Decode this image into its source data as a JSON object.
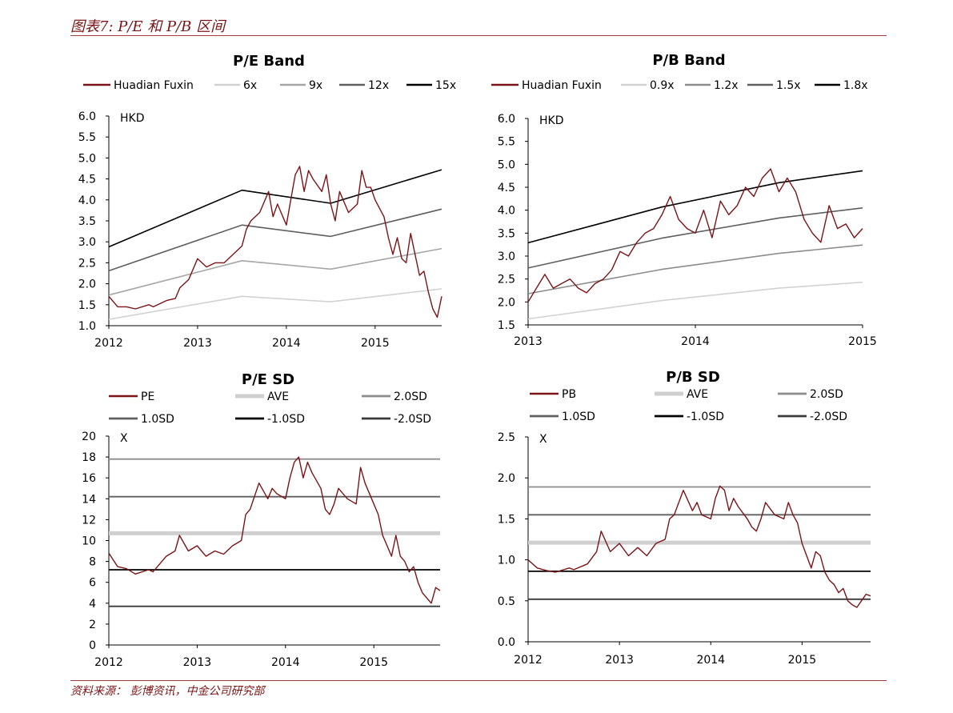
{
  "header": {
    "title": "图表7: P/E 和 P/B 区间"
  },
  "footer": {
    "source": "资料来源：   彭博资讯，中金公司研究部"
  },
  "colors": {
    "price": "#7b1416",
    "accent": "#a43a3a"
  },
  "chart_data": [
    {
      "type": "line",
      "title": "P/E Band",
      "unit_label": "HKD",
      "ylim": [
        1.0,
        6.0
      ],
      "yticks": [
        "1.0",
        "1.5",
        "2.0",
        "2.5",
        "3.0",
        "3.5",
        "4.0",
        "4.5",
        "5.0",
        "5.5",
        "6.0"
      ],
      "xlim": [
        2012.0,
        2015.75
      ],
      "xticks": [
        "2012",
        "2013",
        "2014",
        "2015"
      ],
      "legend": [
        "Huadian Fuxin",
        "6x",
        "9x",
        "12x",
        "15x"
      ],
      "series": [
        {
          "name": "Huadian Fuxin",
          "x": [
            2012.0,
            2012.1,
            2012.2,
            2012.3,
            2012.45,
            2012.5,
            2012.65,
            2012.75,
            2012.8,
            2012.9,
            2013.0,
            2013.1,
            2013.2,
            2013.3,
            2013.4,
            2013.5,
            2013.55,
            2013.6,
            2013.7,
            2013.8,
            2013.85,
            2013.9,
            2014.0,
            2014.05,
            2014.1,
            2014.15,
            2014.2,
            2014.25,
            2014.3,
            2014.4,
            2014.45,
            2014.5,
            2014.55,
            2014.6,
            2014.7,
            2014.8,
            2014.85,
            2014.9,
            2014.95,
            2015.0,
            2015.05,
            2015.1,
            2015.15,
            2015.2,
            2015.25,
            2015.3,
            2015.35,
            2015.4,
            2015.45,
            2015.5,
            2015.55,
            2015.6,
            2015.65,
            2015.7,
            2015.75
          ],
          "y": [
            1.7,
            1.45,
            1.45,
            1.4,
            1.5,
            1.45,
            1.6,
            1.65,
            1.9,
            2.1,
            2.6,
            2.4,
            2.5,
            2.5,
            2.7,
            2.9,
            3.3,
            3.5,
            3.7,
            4.2,
            3.6,
            3.9,
            3.4,
            4.0,
            4.6,
            4.8,
            4.2,
            4.7,
            4.5,
            4.2,
            4.6,
            3.9,
            3.5,
            4.2,
            3.7,
            3.9,
            4.7,
            4.3,
            4.3,
            4.0,
            3.8,
            3.6,
            3.1,
            2.7,
            3.1,
            2.6,
            2.5,
            3.2,
            2.7,
            2.2,
            2.3,
            1.8,
            1.4,
            1.2,
            1.7
          ]
        },
        {
          "name": "6x",
          "x": [
            2012.0,
            2013.5,
            2014.5,
            2015.75
          ],
          "y": [
            1.15,
            1.7,
            1.57,
            1.88
          ]
        },
        {
          "name": "9x",
          "x": [
            2012.0,
            2013.5,
            2014.5,
            2015.75
          ],
          "y": [
            1.73,
            2.55,
            2.35,
            2.84
          ]
        },
        {
          "name": "12x",
          "x": [
            2012.0,
            2013.5,
            2014.5,
            2015.75
          ],
          "y": [
            2.31,
            3.4,
            3.13,
            3.78
          ]
        },
        {
          "name": "15x",
          "x": [
            2012.0,
            2013.5,
            2014.5,
            2015.75
          ],
          "y": [
            2.88,
            4.23,
            3.92,
            4.72
          ]
        }
      ]
    },
    {
      "type": "line",
      "title": "P/B Band",
      "unit_label": "HKD",
      "ylim": [
        1.5,
        6.0
      ],
      "yticks": [
        "1.5",
        "2.0",
        "2.5",
        "3.0",
        "3.5",
        "4.0",
        "4.5",
        "5.0",
        "5.5",
        "6.0"
      ],
      "xlim": [
        2013.0,
        2015.0
      ],
      "xticks": [
        "2013",
        "2014",
        "2015"
      ],
      "legend": [
        "Huadian Fuxin",
        "0.9x",
        "1.2x",
        "1.5x",
        "1.8x"
      ],
      "series": [
        {
          "name": "Huadian Fuxin",
          "x": [
            2013.0,
            2013.05,
            2013.1,
            2013.15,
            2013.2,
            2013.25,
            2013.3,
            2013.35,
            2013.4,
            2013.45,
            2013.5,
            2013.55,
            2013.6,
            2013.65,
            2013.7,
            2013.75,
            2013.8,
            2013.85,
            2013.9,
            2013.95,
            2014.0,
            2014.05,
            2014.1,
            2014.15,
            2014.2,
            2014.25,
            2014.3,
            2014.35,
            2014.4,
            2014.45,
            2014.5,
            2014.55,
            2014.6,
            2014.65,
            2014.7,
            2014.75,
            2014.8,
            2014.85,
            2014.9,
            2014.95,
            2015.0
          ],
          "y": [
            2.0,
            2.3,
            2.6,
            2.3,
            2.4,
            2.5,
            2.3,
            2.2,
            2.4,
            2.5,
            2.7,
            3.1,
            3.0,
            3.3,
            3.5,
            3.6,
            3.9,
            4.3,
            3.8,
            3.6,
            3.5,
            4.0,
            3.4,
            4.2,
            3.9,
            4.1,
            4.5,
            4.3,
            4.7,
            4.9,
            4.4,
            4.7,
            4.4,
            3.8,
            3.5,
            3.3,
            4.1,
            3.6,
            3.7,
            3.4,
            3.6
          ]
        },
        {
          "name": "0.9x",
          "x": [
            2013.0,
            2013.8,
            2014.5,
            2015.0
          ],
          "y": [
            1.63,
            2.03,
            2.3,
            2.43
          ]
        },
        {
          "name": "1.2x",
          "x": [
            2013.0,
            2013.8,
            2014.5,
            2015.0
          ],
          "y": [
            2.18,
            2.71,
            3.06,
            3.24
          ]
        },
        {
          "name": "1.5x",
          "x": [
            2013.0,
            2013.8,
            2014.5,
            2015.0
          ],
          "y": [
            2.74,
            3.39,
            3.83,
            4.05
          ]
        },
        {
          "name": "1.8x",
          "x": [
            2013.0,
            2013.8,
            2014.5,
            2015.0
          ],
          "y": [
            3.29,
            4.07,
            4.6,
            4.86
          ]
        }
      ]
    },
    {
      "type": "line",
      "title": "P/E SD",
      "unit_label": "X",
      "ylim": [
        0,
        20
      ],
      "yticks": [
        "0",
        "2",
        "4",
        "6",
        "8",
        "10",
        "12",
        "14",
        "16",
        "18",
        "20"
      ],
      "xlim": [
        2012.0,
        2015.75
      ],
      "xticks": [
        "2012",
        "2013",
        "2014",
        "2015"
      ],
      "legend": [
        "PE",
        "AVE",
        "2.0SD",
        "1.0SD",
        "-1.0SD",
        "-2.0SD"
      ],
      "series": [
        {
          "name": "PE",
          "x": [
            2012.0,
            2012.1,
            2012.2,
            2012.3,
            2012.45,
            2012.5,
            2012.65,
            2012.75,
            2012.8,
            2012.9,
            2013.0,
            2013.1,
            2013.2,
            2013.3,
            2013.4,
            2013.5,
            2013.55,
            2013.6,
            2013.7,
            2013.8,
            2013.85,
            2013.9,
            2014.0,
            2014.05,
            2014.1,
            2014.15,
            2014.2,
            2014.25,
            2014.3,
            2014.4,
            2014.45,
            2014.5,
            2014.55,
            2014.6,
            2014.7,
            2014.8,
            2014.85,
            2014.9,
            2014.95,
            2015.0,
            2015.05,
            2015.1,
            2015.15,
            2015.2,
            2015.25,
            2015.3,
            2015.35,
            2015.4,
            2015.45,
            2015.5,
            2015.55,
            2015.6,
            2015.65,
            2015.7,
            2015.75
          ],
          "y": [
            8.8,
            7.5,
            7.3,
            6.8,
            7.2,
            7.0,
            8.5,
            9.0,
            10.5,
            9.0,
            9.5,
            8.5,
            9.0,
            8.7,
            9.5,
            10.0,
            12.5,
            13.0,
            15.5,
            14.0,
            15.0,
            14.5,
            14.0,
            16.0,
            17.5,
            18.0,
            16.0,
            17.5,
            16.5,
            15.0,
            13.0,
            12.5,
            13.5,
            15.0,
            14.0,
            13.5,
            17.0,
            15.5,
            14.5,
            13.5,
            12.5,
            10.5,
            9.5,
            8.5,
            10.5,
            8.5,
            8.0,
            7.0,
            7.5,
            6.0,
            5.0,
            4.5,
            4.0,
            5.5,
            5.2
          ]
        },
        {
          "name": "AVE",
          "x": [
            2012.0,
            2015.75
          ],
          "y": [
            10.7,
            10.7
          ]
        },
        {
          "name": "2.0SD",
          "x": [
            2012.0,
            2015.75
          ],
          "y": [
            17.8,
            17.8
          ]
        },
        {
          "name": "1.0SD",
          "x": [
            2012.0,
            2015.75
          ],
          "y": [
            14.2,
            14.2
          ]
        },
        {
          "name": "-1.0SD",
          "x": [
            2012.0,
            2015.75
          ],
          "y": [
            7.2,
            7.2
          ]
        },
        {
          "name": "-2.0SD",
          "x": [
            2012.0,
            2015.75
          ],
          "y": [
            3.7,
            3.7
          ]
        }
      ]
    },
    {
      "type": "line",
      "title": "P/B SD",
      "unit_label": "X",
      "ylim": [
        0.0,
        2.5
      ],
      "yticks": [
        "0.0",
        "0.5",
        "1.0",
        "1.5",
        "2.0",
        "2.5"
      ],
      "xlim": [
        2012.0,
        2015.75
      ],
      "xticks": [
        "2012",
        "2013",
        "2014",
        "2015"
      ],
      "legend": [
        "PB",
        "AVE",
        "2.0SD",
        "1.0SD",
        "-1.0SD",
        "-2.0SD"
      ],
      "series": [
        {
          "name": "PB",
          "x": [
            2012.0,
            2012.1,
            2012.2,
            2012.3,
            2012.45,
            2012.5,
            2012.65,
            2012.75,
            2012.8,
            2012.9,
            2013.0,
            2013.1,
            2013.2,
            2013.3,
            2013.4,
            2013.5,
            2013.55,
            2013.6,
            2013.7,
            2013.8,
            2013.85,
            2013.9,
            2014.0,
            2014.05,
            2014.1,
            2014.15,
            2014.2,
            2014.25,
            2014.3,
            2014.4,
            2014.45,
            2014.5,
            2014.55,
            2014.6,
            2014.7,
            2014.8,
            2014.85,
            2014.9,
            2014.95,
            2015.0,
            2015.05,
            2015.1,
            2015.15,
            2015.2,
            2015.25,
            2015.3,
            2015.35,
            2015.4,
            2015.45,
            2015.5,
            2015.55,
            2015.6,
            2015.65,
            2015.7,
            2015.75
          ],
          "y": [
            1.0,
            0.9,
            0.87,
            0.85,
            0.9,
            0.88,
            0.95,
            1.1,
            1.35,
            1.1,
            1.2,
            1.05,
            1.15,
            1.05,
            1.2,
            1.25,
            1.5,
            1.55,
            1.85,
            1.6,
            1.7,
            1.55,
            1.5,
            1.75,
            1.9,
            1.85,
            1.6,
            1.75,
            1.65,
            1.5,
            1.4,
            1.35,
            1.5,
            1.7,
            1.55,
            1.5,
            1.7,
            1.55,
            1.45,
            1.2,
            1.05,
            0.9,
            1.1,
            1.05,
            0.85,
            0.75,
            0.7,
            0.6,
            0.65,
            0.5,
            0.45,
            0.42,
            0.5,
            0.58,
            0.56
          ]
        },
        {
          "name": "AVE",
          "x": [
            2012.0,
            2015.75
          ],
          "y": [
            1.21,
            1.21
          ]
        },
        {
          "name": "2.0SD",
          "x": [
            2012.0,
            2015.75
          ],
          "y": [
            1.89,
            1.89
          ]
        },
        {
          "name": "1.0SD",
          "x": [
            2012.0,
            2015.75
          ],
          "y": [
            1.55,
            1.55
          ]
        },
        {
          "name": "-1.0SD",
          "x": [
            2012.0,
            2015.75
          ],
          "y": [
            0.86,
            0.86
          ]
        },
        {
          "name": "-2.0SD",
          "x": [
            2012.0,
            2015.75
          ],
          "y": [
            0.52,
            0.52
          ]
        }
      ]
    }
  ]
}
